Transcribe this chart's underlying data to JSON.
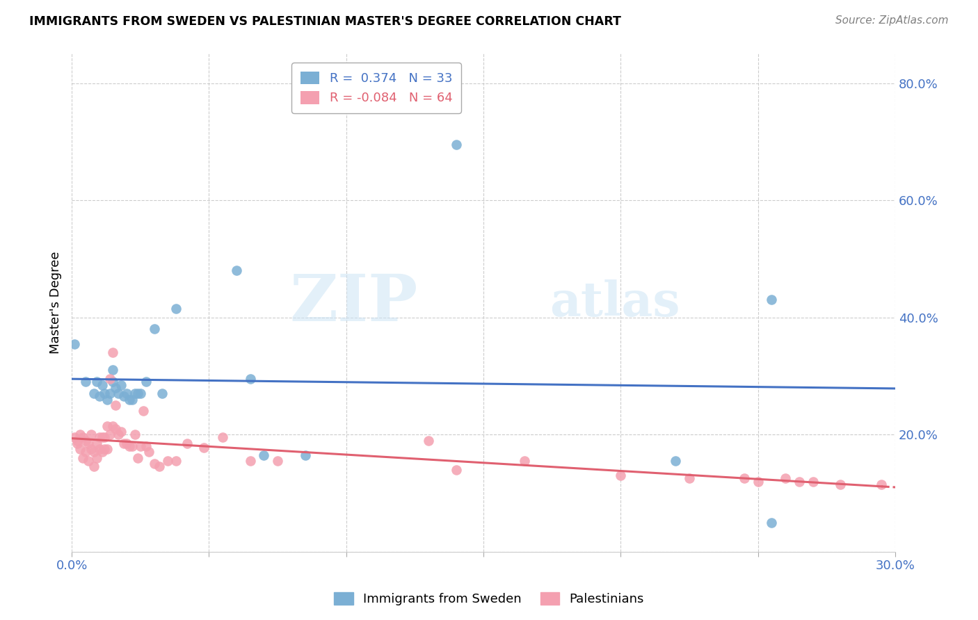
{
  "title": "IMMIGRANTS FROM SWEDEN VS PALESTINIAN MASTER'S DEGREE CORRELATION CHART",
  "source": "Source: ZipAtlas.com",
  "ylabel": "Master's Degree",
  "x_min": 0.0,
  "x_max": 0.3,
  "y_min": 0.0,
  "y_max": 0.85,
  "x_ticks": [
    0.0,
    0.05,
    0.1,
    0.15,
    0.2,
    0.25,
    0.3
  ],
  "x_tick_labels": [
    "0.0%",
    "",
    "",
    "",
    "",
    "",
    "30.0%"
  ],
  "y_ticks": [
    0.0,
    0.2,
    0.4,
    0.6,
    0.8
  ],
  "y_tick_labels": [
    "",
    "20.0%",
    "40.0%",
    "60.0%",
    "80.0%"
  ],
  "blue_R": 0.374,
  "blue_N": 33,
  "pink_R": -0.084,
  "pink_N": 64,
  "blue_color": "#7bafd4",
  "pink_color": "#f4a0b0",
  "blue_line_color": "#4472c4",
  "pink_line_color": "#e06070",
  "watermark_zip": "ZIP",
  "watermark_atlas": "atlas",
  "blue_scatter_x": [
    0.001,
    0.005,
    0.008,
    0.009,
    0.01,
    0.011,
    0.012,
    0.013,
    0.014,
    0.015,
    0.015,
    0.016,
    0.017,
    0.018,
    0.019,
    0.02,
    0.021,
    0.022,
    0.023,
    0.024,
    0.025,
    0.027,
    0.03,
    0.033,
    0.038,
    0.06,
    0.065,
    0.07,
    0.085,
    0.14,
    0.22,
    0.255,
    0.255
  ],
  "blue_scatter_y": [
    0.355,
    0.29,
    0.27,
    0.29,
    0.265,
    0.285,
    0.27,
    0.26,
    0.27,
    0.29,
    0.31,
    0.28,
    0.27,
    0.285,
    0.265,
    0.27,
    0.26,
    0.26,
    0.27,
    0.27,
    0.27,
    0.29,
    0.38,
    0.27,
    0.415,
    0.48,
    0.295,
    0.165,
    0.165,
    0.695,
    0.155,
    0.43,
    0.05
  ],
  "pink_scatter_x": [
    0.001,
    0.002,
    0.002,
    0.003,
    0.003,
    0.004,
    0.004,
    0.005,
    0.005,
    0.006,
    0.006,
    0.007,
    0.007,
    0.008,
    0.008,
    0.009,
    0.009,
    0.01,
    0.01,
    0.011,
    0.011,
    0.012,
    0.012,
    0.013,
    0.013,
    0.014,
    0.014,
    0.015,
    0.015,
    0.016,
    0.016,
    0.017,
    0.018,
    0.019,
    0.02,
    0.021,
    0.022,
    0.023,
    0.024,
    0.025,
    0.026,
    0.027,
    0.028,
    0.03,
    0.032,
    0.035,
    0.038,
    0.042,
    0.048,
    0.055,
    0.065,
    0.075,
    0.13,
    0.14,
    0.165,
    0.2,
    0.225,
    0.245,
    0.25,
    0.26,
    0.265,
    0.27,
    0.28,
    0.295
  ],
  "pink_scatter_y": [
    0.195,
    0.19,
    0.185,
    0.2,
    0.175,
    0.195,
    0.16,
    0.19,
    0.17,
    0.185,
    0.155,
    0.2,
    0.175,
    0.17,
    0.145,
    0.185,
    0.16,
    0.195,
    0.175,
    0.195,
    0.17,
    0.195,
    0.175,
    0.215,
    0.175,
    0.295,
    0.2,
    0.34,
    0.215,
    0.25,
    0.21,
    0.2,
    0.205,
    0.185,
    0.185,
    0.18,
    0.18,
    0.2,
    0.16,
    0.18,
    0.24,
    0.18,
    0.17,
    0.15,
    0.145,
    0.155,
    0.155,
    0.185,
    0.178,
    0.195,
    0.155,
    0.155,
    0.19,
    0.14,
    0.155,
    0.13,
    0.125,
    0.125,
    0.12,
    0.125,
    0.12,
    0.12,
    0.115,
    0.115
  ]
}
